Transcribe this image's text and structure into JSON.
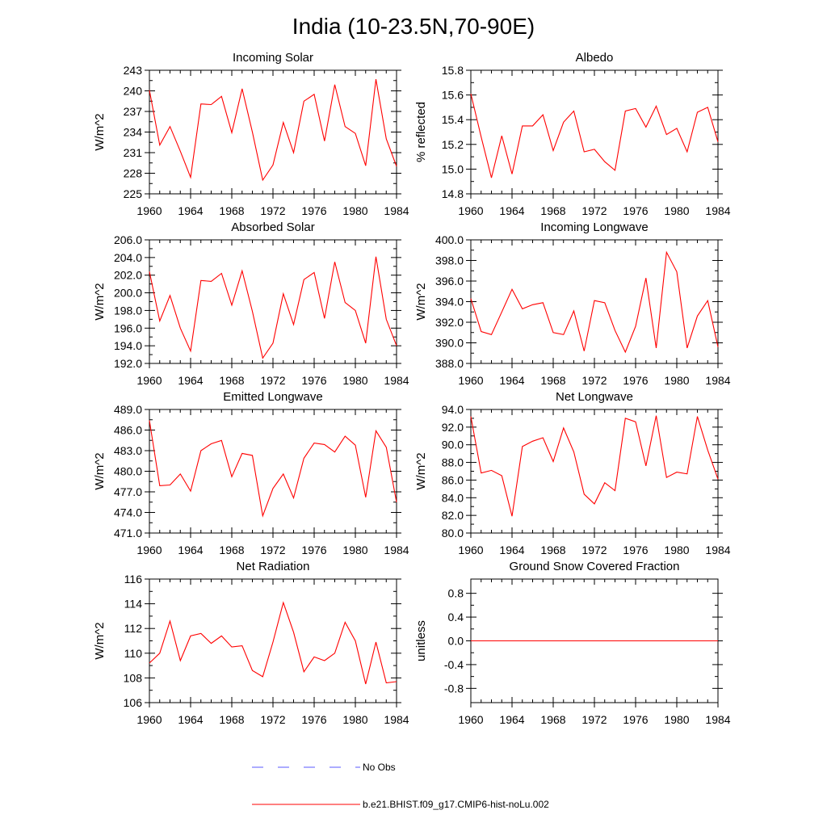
{
  "title": "India (10-23.5N,70-90E)",
  "colors": {
    "model": "#ff0000",
    "obs": "#5a5aff",
    "axis": "#000000"
  },
  "legend": {
    "obs_label": "No Obs",
    "model_label": "b.e21.BHIST.f09_g17.CMIP6-hist-noLu.002"
  },
  "chart_data": [
    {
      "type": "line",
      "title": "Incoming Solar",
      "ylabel": "W/m^2",
      "ylim": [
        225,
        243
      ],
      "yticks": [
        225,
        228,
        231,
        234,
        237,
        240,
        243
      ],
      "ytick_labels": [
        "225",
        "228",
        "231",
        "234",
        "237",
        "240",
        "243"
      ],
      "xlim": [
        1960,
        1984
      ],
      "xticks": [
        1960,
        1964,
        1968,
        1972,
        1976,
        1980,
        1984
      ],
      "xtick_labels": [
        "1960",
        "1964",
        "1968",
        "1972",
        "1976",
        "1980",
        "1984"
      ],
      "x": [
        1960,
        1961,
        1962,
        1963,
        1964,
        1965,
        1966,
        1967,
        1968,
        1969,
        1970,
        1971,
        1972,
        1973,
        1974,
        1975,
        1976,
        1977,
        1978,
        1979,
        1980,
        1981,
        1982,
        1983,
        1984
      ],
      "series": [
        {
          "values": [
            240.1,
            232.1,
            234.8,
            231.2,
            227.4,
            238.1,
            238.0,
            239.2,
            233.9,
            240.3,
            234.0,
            227.0,
            229.2,
            235.4,
            231.0,
            238.5,
            239.5,
            232.7,
            240.9,
            234.8,
            233.8,
            229.1,
            241.7,
            233.0,
            229.0
          ]
        }
      ]
    },
    {
      "type": "line",
      "title": "Albedo",
      "ylabel": "% reflected",
      "ylim": [
        14.8,
        15.8
      ],
      "yticks": [
        14.8,
        15.0,
        15.2,
        15.4,
        15.6,
        15.8
      ],
      "ytick_labels": [
        "14.8",
        "15.0",
        "15.2",
        "15.4",
        "15.6",
        "15.8"
      ],
      "xlim": [
        1960,
        1984
      ],
      "xticks": [
        1960,
        1964,
        1968,
        1972,
        1976,
        1980,
        1984
      ],
      "xtick_labels": [
        "1960",
        "1964",
        "1968",
        "1972",
        "1976",
        "1980",
        "1984"
      ],
      "x": [
        1960,
        1961,
        1962,
        1963,
        1964,
        1965,
        1966,
        1967,
        1968,
        1969,
        1970,
        1971,
        1972,
        1973,
        1974,
        1975,
        1976,
        1977,
        1978,
        1979,
        1980,
        1981,
        1982,
        1983,
        1984
      ],
      "series": [
        {
          "values": [
            15.61,
            15.26,
            14.93,
            15.27,
            14.96,
            15.35,
            15.35,
            15.44,
            15.15,
            15.38,
            15.47,
            15.14,
            15.16,
            15.06,
            14.99,
            15.47,
            15.49,
            15.34,
            15.51,
            15.28,
            15.33,
            15.14,
            15.46,
            15.5,
            15.22
          ]
        }
      ]
    },
    {
      "type": "line",
      "title": "Absorbed Solar",
      "ylabel": "W/m^2",
      "ylim": [
        192,
        206
      ],
      "yticks": [
        192,
        194,
        196,
        198,
        200,
        202,
        204,
        206
      ],
      "ytick_labels": [
        "192.0",
        "194.0",
        "196.0",
        "198.0",
        "200.0",
        "202.0",
        "204.0",
        "206.0"
      ],
      "xlim": [
        1960,
        1984
      ],
      "xticks": [
        1960,
        1964,
        1968,
        1972,
        1976,
        1980,
        1984
      ],
      "xtick_labels": [
        "1960",
        "1964",
        "1968",
        "1972",
        "1976",
        "1980",
        "1984"
      ],
      "x": [
        1960,
        1961,
        1962,
        1963,
        1964,
        1965,
        1966,
        1967,
        1968,
        1969,
        1970,
        1971,
        1972,
        1973,
        1974,
        1975,
        1976,
        1977,
        1978,
        1979,
        1980,
        1981,
        1982,
        1983,
        1984
      ],
      "series": [
        {
          "values": [
            202.4,
            196.8,
            199.7,
            196.0,
            193.4,
            201.4,
            201.3,
            202.2,
            198.6,
            202.5,
            197.9,
            192.6,
            194.3,
            199.9,
            196.4,
            201.5,
            202.3,
            197.1,
            203.5,
            198.9,
            198.0,
            194.3,
            204.1,
            197.0,
            194.0
          ]
        }
      ]
    },
    {
      "type": "line",
      "title": "Incoming Longwave",
      "ylabel": "W/m^2",
      "ylim": [
        388,
        400
      ],
      "yticks": [
        388,
        390,
        392,
        394,
        396,
        398,
        400
      ],
      "ytick_labels": [
        "388.0",
        "390.0",
        "392.0",
        "394.0",
        "396.0",
        "398.0",
        "400.0"
      ],
      "xlim": [
        1960,
        1984
      ],
      "xticks": [
        1960,
        1964,
        1968,
        1972,
        1976,
        1980,
        1984
      ],
      "xtick_labels": [
        "1960",
        "1964",
        "1968",
        "1972",
        "1976",
        "1980",
        "1984"
      ],
      "x": [
        1960,
        1961,
        1962,
        1963,
        1964,
        1965,
        1966,
        1967,
        1968,
        1969,
        1970,
        1971,
        1972,
        1973,
        1974,
        1975,
        1976,
        1977,
        1978,
        1979,
        1980,
        1981,
        1982,
        1983,
        1984
      ],
      "series": [
        {
          "values": [
            394.3,
            391.1,
            390.8,
            393.0,
            395.2,
            393.3,
            393.7,
            393.9,
            391.0,
            390.8,
            393.1,
            389.2,
            394.1,
            393.9,
            391.2,
            389.1,
            391.6,
            396.3,
            389.5,
            398.8,
            396.9,
            389.5,
            392.6,
            394.1,
            389.6
          ]
        }
      ]
    },
    {
      "type": "line",
      "title": "Emitted Longwave",
      "ylabel": "W/m^2",
      "ylim": [
        471,
        489
      ],
      "yticks": [
        471,
        474,
        477,
        480,
        483,
        486,
        489
      ],
      "ytick_labels": [
        "471.0",
        "474.0",
        "477.0",
        "480.0",
        "483.0",
        "486.0",
        "489.0"
      ],
      "xlim": [
        1960,
        1984
      ],
      "xticks": [
        1960,
        1964,
        1968,
        1972,
        1976,
        1980,
        1984
      ],
      "xtick_labels": [
        "1960",
        "1964",
        "1968",
        "1972",
        "1976",
        "1980",
        "1984"
      ],
      "x": [
        1960,
        1961,
        1962,
        1963,
        1964,
        1965,
        1966,
        1967,
        1968,
        1969,
        1970,
        1971,
        1972,
        1973,
        1974,
        1975,
        1976,
        1977,
        1978,
        1979,
        1980,
        1981,
        1982,
        1983,
        1984
      ],
      "series": [
        {
          "values": [
            487.4,
            477.9,
            478.0,
            479.6,
            477.1,
            483.0,
            484.0,
            484.5,
            479.2,
            482.6,
            482.3,
            473.5,
            477.5,
            479.6,
            476.1,
            481.9,
            484.1,
            483.9,
            482.8,
            485.1,
            483.8,
            476.2,
            485.9,
            483.5,
            475.5
          ]
        }
      ]
    },
    {
      "type": "line",
      "title": "Net Longwave",
      "ylabel": "W/m^2",
      "ylim": [
        80,
        94
      ],
      "yticks": [
        80,
        82,
        84,
        86,
        88,
        90,
        92,
        94
      ],
      "ytick_labels": [
        "80.0",
        "82.0",
        "84.0",
        "86.0",
        "88.0",
        "90.0",
        "92.0",
        "94.0"
      ],
      "xlim": [
        1960,
        1984
      ],
      "xticks": [
        1960,
        1964,
        1968,
        1972,
        1976,
        1980,
        1984
      ],
      "xtick_labels": [
        "1960",
        "1964",
        "1968",
        "1972",
        "1976",
        "1980",
        "1984"
      ],
      "x": [
        1960,
        1961,
        1962,
        1963,
        1964,
        1965,
        1966,
        1967,
        1968,
        1969,
        1970,
        1971,
        1972,
        1973,
        1974,
        1975,
        1976,
        1977,
        1978,
        1979,
        1980,
        1981,
        1982,
        1983,
        1984
      ],
      "series": [
        {
          "values": [
            93.2,
            86.8,
            87.1,
            86.5,
            81.9,
            89.8,
            90.4,
            90.8,
            88.1,
            91.9,
            89.2,
            84.4,
            83.3,
            85.7,
            84.8,
            93.0,
            92.6,
            87.6,
            93.3,
            86.3,
            86.9,
            86.7,
            93.2,
            89.4,
            86.1
          ]
        }
      ]
    },
    {
      "type": "line",
      "title": "Net Radiation",
      "ylabel": "W/m^2",
      "ylim": [
        106,
        116
      ],
      "yticks": [
        106,
        108,
        110,
        112,
        114,
        116
      ],
      "ytick_labels": [
        "106",
        "108",
        "110",
        "112",
        "114",
        "116"
      ],
      "xlim": [
        1960,
        1984
      ],
      "xticks": [
        1960,
        1964,
        1968,
        1972,
        1976,
        1980,
        1984
      ],
      "xtick_labels": [
        "1960",
        "1964",
        "1968",
        "1972",
        "1976",
        "1980",
        "1984"
      ],
      "x": [
        1960,
        1961,
        1962,
        1963,
        1964,
        1965,
        1966,
        1967,
        1968,
        1969,
        1970,
        1971,
        1972,
        1973,
        1974,
        1975,
        1976,
        1977,
        1978,
        1979,
        1980,
        1981,
        1982,
        1983,
        1984
      ],
      "series": [
        {
          "values": [
            109.2,
            110.0,
            112.6,
            109.4,
            111.4,
            111.6,
            110.8,
            111.4,
            110.5,
            110.6,
            108.6,
            108.1,
            110.9,
            114.1,
            111.7,
            108.5,
            109.7,
            109.4,
            110.0,
            112.5,
            111.0,
            107.5,
            110.9,
            107.6,
            107.7
          ]
        }
      ]
    },
    {
      "type": "line",
      "title": "Ground Snow Covered Fraction",
      "ylabel": "unitless",
      "ylim": [
        -1.04,
        1.04
      ],
      "yticks": [
        -0.8,
        -0.4,
        0.0,
        0.4,
        0.8
      ],
      "ytick_labels": [
        "-0.8",
        "-0.4",
        "0.0",
        "0.4",
        "0.8"
      ],
      "xlim": [
        1960,
        1984
      ],
      "xticks": [
        1960,
        1964,
        1968,
        1972,
        1976,
        1980,
        1984
      ],
      "xtick_labels": [
        "1960",
        "1964",
        "1968",
        "1972",
        "1976",
        "1980",
        "1984"
      ],
      "x": [
        1960,
        1961,
        1962,
        1963,
        1964,
        1965,
        1966,
        1967,
        1968,
        1969,
        1970,
        1971,
        1972,
        1973,
        1974,
        1975,
        1976,
        1977,
        1978,
        1979,
        1980,
        1981,
        1982,
        1983,
        1984
      ],
      "series": [
        {
          "values": [
            0,
            0,
            0,
            0,
            0,
            0,
            0,
            0,
            0,
            0,
            0,
            0,
            0,
            0,
            0,
            0,
            0,
            0,
            0,
            0,
            0,
            0,
            0,
            0,
            0
          ]
        }
      ]
    }
  ]
}
